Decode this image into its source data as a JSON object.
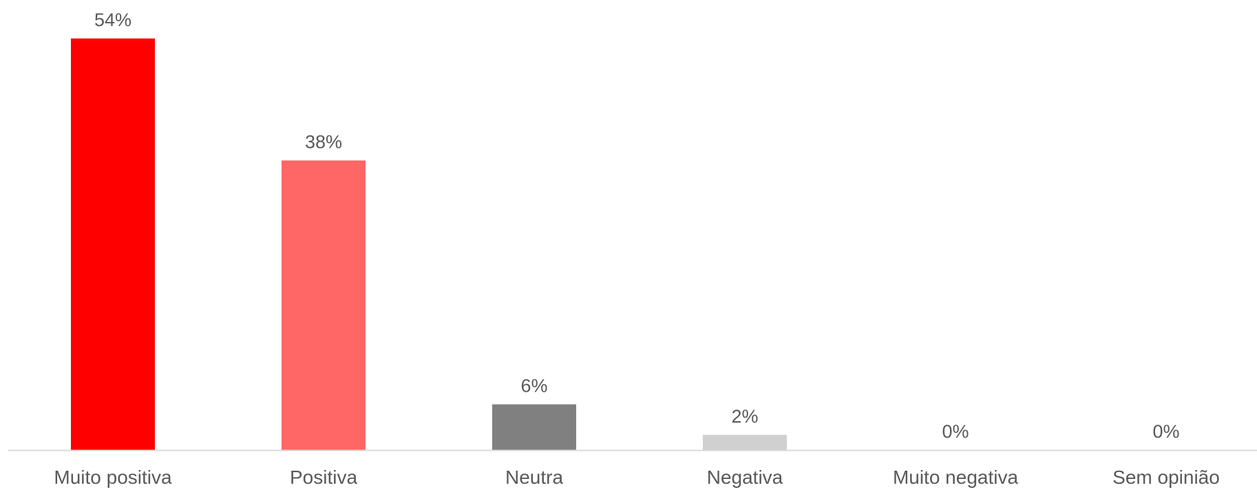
{
  "chart_data": {
    "type": "bar",
    "title": "",
    "xlabel": "",
    "ylabel": "",
    "ylim": [
      0,
      54
    ],
    "grid": false,
    "legend": "none",
    "categories": [
      "Muito positiva",
      "Positiva",
      "Neutra",
      "Negativa",
      "Muito negativa",
      "Sem opinião"
    ],
    "values": [
      54,
      38,
      6,
      2,
      0,
      0
    ],
    "data_labels": [
      "54%",
      "38%",
      "6%",
      "2%",
      "0%",
      "0%"
    ],
    "colors": [
      "#ff0000",
      "#ff6666",
      "#808080",
      "#d0d0d0",
      "#d0d0d0",
      "#d0d0d0"
    ],
    "axis_color": "#d9d9d9"
  }
}
